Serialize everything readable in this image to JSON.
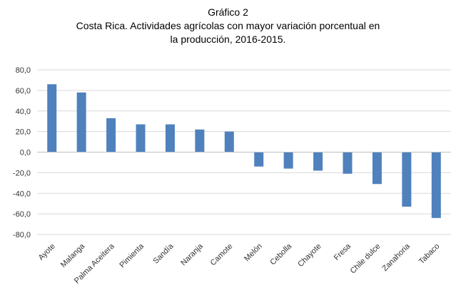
{
  "chart_data": {
    "type": "bar",
    "title_lines": [
      "Gráfico 2",
      "Costa Rica. Actividades agrícolas con mayor variación porcentual en",
      "la producción, 2016-2015."
    ],
    "xlabel": "",
    "ylabel": "",
    "categories": [
      "Ayote",
      "Malanga",
      "Palma Aceitera",
      "Pimienta",
      "Sandía",
      "Naranja",
      "Camote",
      "Melón",
      "Cebolla",
      "Chayote",
      "Fresa",
      "Chile dulce",
      "Zanahoria",
      "Tabaco"
    ],
    "values": [
      66,
      58,
      33,
      27,
      27,
      22,
      20,
      -14,
      -16,
      -18,
      -21,
      -31,
      -53,
      -64
    ],
    "ylim": [
      -80,
      80
    ],
    "yticks": [
      "80,0",
      "60,0",
      "40,0",
      "20,0",
      "0,0",
      "-20,0",
      "-40,0",
      "-60,0",
      "-80,0"
    ],
    "ytick_values": [
      80,
      60,
      40,
      20,
      0,
      -20,
      -40,
      -60,
      -80
    ],
    "grid": true,
    "legend": "none",
    "bar_color": "#4f81bd",
    "grid_color": "#d9d9d9",
    "axis_color": "#bfbfbf"
  }
}
